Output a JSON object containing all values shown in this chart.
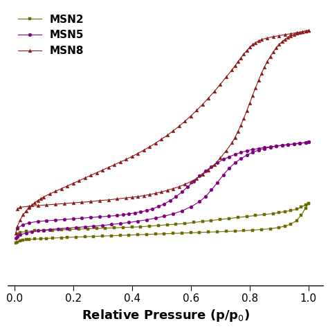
{
  "title": "",
  "xlabel": "Relative Pressure (p/p$_0$)",
  "ylabel": "",
  "xlim": [
    -0.02,
    1.05
  ],
  "series": [
    {
      "label": "MSN2",
      "color": "#6B6B00",
      "marker": "s",
      "markersize": 3.5,
      "linewidth": 0.8,
      "adsorption_x": [
        0.005,
        0.01,
        0.02,
        0.03,
        0.04,
        0.05,
        0.07,
        0.09,
        0.11,
        0.13,
        0.16,
        0.18,
        0.21,
        0.24,
        0.27,
        0.3,
        0.33,
        0.36,
        0.39,
        0.42,
        0.45,
        0.48,
        0.51,
        0.54,
        0.57,
        0.6,
        0.63,
        0.66,
        0.69,
        0.72,
        0.75,
        0.78,
        0.81,
        0.84,
        0.87,
        0.9,
        0.92,
        0.94,
        0.96,
        0.975,
        0.99,
        1.0
      ],
      "adsorption_y": [
        40,
        43,
        46,
        48,
        50,
        51,
        52,
        53,
        54,
        55,
        56,
        57,
        58,
        59,
        60,
        61,
        62,
        63,
        64,
        65,
        66,
        67,
        68,
        69,
        70,
        71,
        72,
        73,
        74,
        75,
        76,
        77,
        79,
        81,
        83,
        87,
        91,
        97,
        108,
        124,
        145,
        160
      ],
      "desorption_x": [
        1.0,
        0.99,
        0.975,
        0.96,
        0.94,
        0.92,
        0.9,
        0.88,
        0.85,
        0.82,
        0.79,
        0.76,
        0.73,
        0.7,
        0.67,
        0.64,
        0.61,
        0.58,
        0.55,
        0.52,
        0.49,
        0.46,
        0.43,
        0.4,
        0.37,
        0.34,
        0.31,
        0.28,
        0.25,
        0.22,
        0.19,
        0.16,
        0.13,
        0.1,
        0.07,
        0.04,
        0.02,
        0.01
      ],
      "desorption_y": [
        160,
        155,
        148,
        142,
        138,
        135,
        132,
        129,
        126,
        123,
        120,
        117,
        114,
        111,
        108,
        105,
        102,
        99,
        97,
        95,
        93,
        91,
        89,
        88,
        87,
        86,
        85,
        84,
        83,
        82,
        81,
        80,
        79,
        78,
        77,
        75,
        72,
        68
      ]
    },
    {
      "label": "MSN5",
      "color": "#800080",
      "marker": "o",
      "markersize": 3.5,
      "linewidth": 0.8,
      "adsorption_x": [
        0.005,
        0.01,
        0.02,
        0.04,
        0.06,
        0.08,
        0.1,
        0.12,
        0.15,
        0.18,
        0.21,
        0.24,
        0.27,
        0.3,
        0.33,
        0.36,
        0.39,
        0.42,
        0.45,
        0.48,
        0.51,
        0.54,
        0.57,
        0.6,
        0.63,
        0.65,
        0.67,
        0.69,
        0.71,
        0.73,
        0.75,
        0.77,
        0.79,
        0.81,
        0.83,
        0.85,
        0.87,
        0.89,
        0.91,
        0.93,
        0.95,
        0.97,
        0.99,
        1.0
      ],
      "adsorption_y": [
        55,
        60,
        65,
        70,
        74,
        77,
        79,
        81,
        83,
        85,
        87,
        89,
        91,
        93,
        96,
        99,
        102,
        106,
        110,
        115,
        121,
        128,
        137,
        149,
        165,
        180,
        200,
        222,
        245,
        265,
        282,
        294,
        305,
        313,
        320,
        325,
        329,
        332,
        335,
        337,
        339,
        341,
        343,
        345
      ],
      "desorption_x": [
        1.0,
        0.99,
        0.97,
        0.95,
        0.93,
        0.91,
        0.89,
        0.87,
        0.85,
        0.83,
        0.81,
        0.79,
        0.77,
        0.75,
        0.73,
        0.71,
        0.69,
        0.67,
        0.65,
        0.63,
        0.61,
        0.59,
        0.57,
        0.55,
        0.53,
        0.51,
        0.49,
        0.47,
        0.45,
        0.43,
        0.41,
        0.39,
        0.37,
        0.35,
        0.32,
        0.29,
        0.26,
        0.23,
        0.2,
        0.17,
        0.14,
        0.11,
        0.08,
        0.05,
        0.03,
        0.01
      ],
      "desorption_y": [
        345,
        343,
        340,
        338,
        336,
        334,
        332,
        330,
        328,
        325,
        322,
        318,
        313,
        307,
        300,
        292,
        282,
        270,
        257,
        242,
        226,
        210,
        194,
        180,
        168,
        158,
        150,
        143,
        138,
        134,
        131,
        128,
        125,
        123,
        121,
        119,
        117,
        115,
        113,
        111,
        109,
        107,
        105,
        101,
        95,
        85
      ]
    },
    {
      "label": "MSN8",
      "color": "#8B1A1A",
      "marker": "^",
      "markersize": 3.5,
      "linewidth": 0.8,
      "adsorption_x": [
        0.005,
        0.01,
        0.02,
        0.03,
        0.04,
        0.05,
        0.06,
        0.07,
        0.08,
        0.09,
        0.1,
        0.12,
        0.14,
        0.16,
        0.18,
        0.2,
        0.22,
        0.24,
        0.26,
        0.28,
        0.3,
        0.32,
        0.34,
        0.36,
        0.38,
        0.4,
        0.42,
        0.44,
        0.46,
        0.48,
        0.5,
        0.52,
        0.54,
        0.56,
        0.58,
        0.6,
        0.62,
        0.64,
        0.66,
        0.68,
        0.7,
        0.72,
        0.74,
        0.75,
        0.76,
        0.77,
        0.78,
        0.79,
        0.8,
        0.81,
        0.82,
        0.83,
        0.84,
        0.86,
        0.88,
        0.9,
        0.92,
        0.94,
        0.96,
        0.98,
        0.99,
        1.0
      ],
      "adsorption_y": [
        70,
        90,
        110,
        125,
        137,
        147,
        155,
        162,
        168,
        174,
        179,
        188,
        196,
        204,
        212,
        220,
        228,
        236,
        244,
        252,
        260,
        268,
        276,
        284,
        292,
        301,
        310,
        320,
        330,
        341,
        353,
        365,
        378,
        392,
        407,
        423,
        440,
        458,
        477,
        497,
        518,
        540,
        562,
        574,
        586,
        598,
        610,
        620,
        630,
        638,
        644,
        649,
        653,
        658,
        662,
        665,
        668,
        671,
        674,
        677,
        679,
        681
      ],
      "desorption_x": [
        1.0,
        0.99,
        0.98,
        0.97,
        0.96,
        0.95,
        0.94,
        0.93,
        0.92,
        0.91,
        0.9,
        0.89,
        0.88,
        0.87,
        0.86,
        0.85,
        0.84,
        0.83,
        0.82,
        0.81,
        0.8,
        0.79,
        0.78,
        0.77,
        0.76,
        0.75,
        0.74,
        0.72,
        0.7,
        0.68,
        0.66,
        0.64,
        0.62,
        0.6,
        0.58,
        0.56,
        0.54,
        0.52,
        0.5,
        0.48,
        0.46,
        0.44,
        0.42,
        0.4,
        0.38,
        0.35,
        0.32,
        0.29,
        0.26,
        0.23,
        0.2,
        0.17,
        0.14,
        0.11,
        0.08,
        0.05,
        0.02,
        0.01
      ],
      "desorption_y": [
        681,
        679,
        677,
        675,
        672,
        669,
        665,
        660,
        654,
        647,
        638,
        628,
        616,
        602,
        587,
        570,
        551,
        530,
        508,
        485,
        461,
        438,
        416,
        395,
        376,
        358,
        342,
        318,
        296,
        276,
        260,
        246,
        235,
        225,
        217,
        210,
        204,
        199,
        194,
        190,
        186,
        183,
        180,
        178,
        176,
        173,
        170,
        168,
        165,
        163,
        161,
        159,
        157,
        155,
        153,
        151,
        148,
        143
      ]
    }
  ],
  "xticks": [
    0.0,
    0.2,
    0.4,
    0.6,
    0.8,
    1.0
  ],
  "legend_loc": "upper left",
  "background_color": "#ffffff",
  "tick_fontsize": 11,
  "label_fontsize": 13,
  "legend_fontsize": 11
}
